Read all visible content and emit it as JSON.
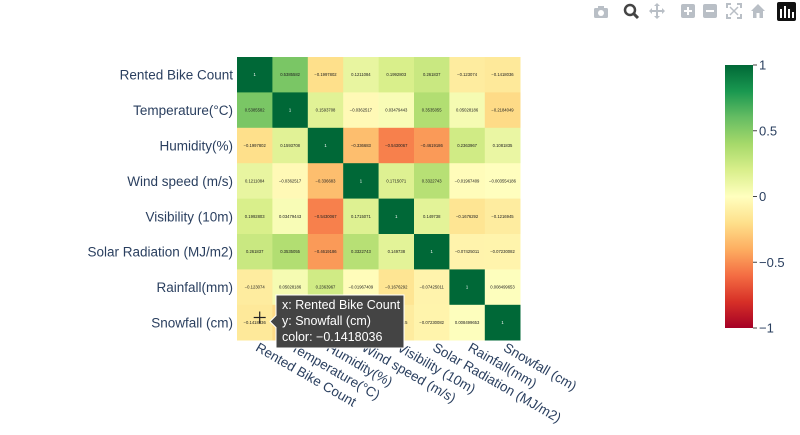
{
  "toolbar": {
    "icons": [
      "camera-icon",
      "zoom-icon",
      "pan-icon",
      "zoom-in-icon",
      "zoom-out-icon",
      "autoscale-icon",
      "home-icon",
      "plotly-logo-icon"
    ]
  },
  "chart_data": {
    "type": "heatmap",
    "title": "",
    "x_categories": [
      "Rented Bike Count",
      "Temperature(°C)",
      "Humidity(%)",
      "Wind speed (m/s)",
      "Visibility (10m)",
      "Solar Radiation (MJ/m2)",
      "Rainfall(mm)",
      "Snowfall (cm)"
    ],
    "y_categories": [
      "Rented Bike Count",
      "Temperature(°C)",
      "Humidity(%)",
      "Wind speed (m/s)",
      "Visibility (10m)",
      "Solar Radiation (MJ/m2)",
      "Rainfall(mm)",
      "Snowfall (cm)"
    ],
    "z": [
      [
        1,
        0.5385582,
        -0.1997802,
        0.1211084,
        0.1992803,
        0.261837,
        -0.123074,
        -0.1418036
      ],
      [
        0.5385582,
        1,
        0.1593708,
        -0.0362517,
        0.03479443,
        0.3535055,
        0.05028186,
        -0.2184049
      ],
      [
        -0.1997802,
        0.1593708,
        1,
        -0.336683,
        -0.5430067,
        -0.4619186,
        0.2363967,
        0.1081835
      ],
      [
        0.1211084,
        -0.0362517,
        -0.336683,
        1,
        0.1715071,
        0.3322743,
        -0.01967409,
        -0.003554186
      ],
      [
        0.1992803,
        0.03479443,
        -0.5430067,
        0.1715071,
        1,
        0.149738,
        -0.1676292,
        -0.1216945
      ],
      [
        0.261837,
        0.3535055,
        -0.4619186,
        0.3322743,
        0.149738,
        1,
        -0.07425011,
        -0.07230082
      ],
      [
        -0.123074,
        0.05028186,
        0.2363967,
        -0.01967409,
        -0.1676292,
        -0.07425011,
        1,
        0.008499653
      ],
      [
        -0.1418036,
        -0.2184049,
        0.1081835,
        -0.003554186,
        -0.1216945,
        -0.07230082,
        0.008499653,
        1
      ]
    ],
    "zrange": [
      -1,
      1
    ],
    "colorscale": [
      "#a50026",
      "#d73027",
      "#f46d43",
      "#fdae61",
      "#fee08b",
      "#ffffbf",
      "#d9ef8b",
      "#a6d96a",
      "#66bd63",
      "#1a9850",
      "#006837"
    ],
    "colorbar": {
      "ticks": [
        1,
        0.5,
        0,
        -0.5,
        -1
      ],
      "ticklabels": [
        "1",
        "0.5",
        "0",
        "−0.5",
        "−1"
      ]
    },
    "hover": {
      "lines": [
        "x: Rented Bike Count",
        "y: Snowfall (cm)",
        "color: −0.1418036"
      ]
    }
  }
}
